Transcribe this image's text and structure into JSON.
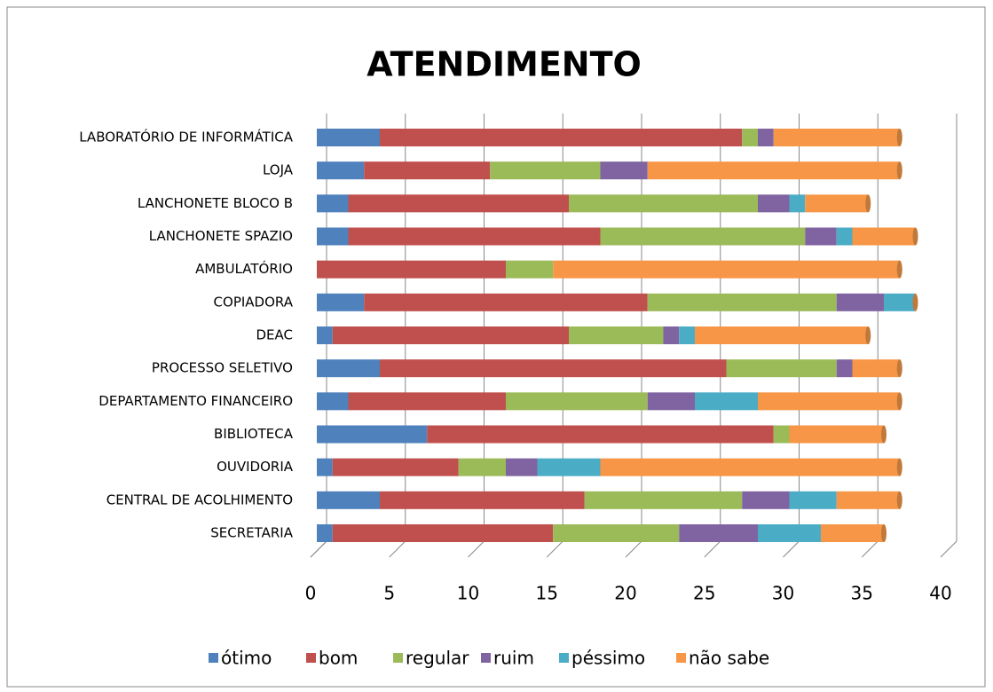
{
  "chart_data": {
    "type": "bar",
    "orientation": "horizontal",
    "stacked": true,
    "title": "ATENDIMENTO",
    "categories": [
      "SECRETARIA",
      "CENTRAL DE ACOLHIMENTO",
      "OUVIDORIA",
      "BIBLIOTECA",
      "DEPARTAMENTO FINANCEIRO",
      "PROCESSO SELETIVO",
      "DEAC",
      "COPIADORA",
      "AMBULATÓRIO",
      "LANCHONETE SPAZIO",
      "LANCHONETE BLOCO B",
      "LOJA",
      "LABORATÓRIO DE INFORMÁTICA"
    ],
    "series": [
      {
        "name": "ótimo",
        "color": "#4f81bd",
        "values": [
          1,
          4,
          1,
          7,
          2,
          4,
          1,
          3,
          0,
          2,
          2,
          3,
          4
        ]
      },
      {
        "name": "bom",
        "color": "#c0504d",
        "values": [
          14,
          13,
          8,
          22,
          10,
          22,
          15,
          18,
          12,
          16,
          14,
          8,
          23
        ]
      },
      {
        "name": "regular",
        "color": "#9bbb59",
        "values": [
          8,
          10,
          3,
          1,
          9,
          7,
          6,
          12,
          3,
          13,
          12,
          7,
          1
        ]
      },
      {
        "name": "ruim",
        "color": "#8064a2",
        "values": [
          5,
          3,
          2,
          0,
          3,
          1,
          1,
          3,
          0,
          2,
          2,
          3,
          1
        ]
      },
      {
        "name": "péssimo",
        "color": "#4bacc6",
        "values": [
          4,
          3,
          4,
          0,
          4,
          0,
          1,
          2,
          0,
          1,
          1,
          0,
          0
        ]
      },
      {
        "name": "não sabe",
        "color": "#f79646",
        "values": [
          4,
          4,
          19,
          6,
          9,
          3,
          11,
          0,
          22,
          4,
          4,
          16,
          8
        ]
      }
    ],
    "xlim": [
      0,
      40
    ],
    "xticks": [
      0,
      5,
      10,
      15,
      20,
      25,
      30,
      35,
      40
    ],
    "grid": true,
    "legend": "bottom"
  }
}
